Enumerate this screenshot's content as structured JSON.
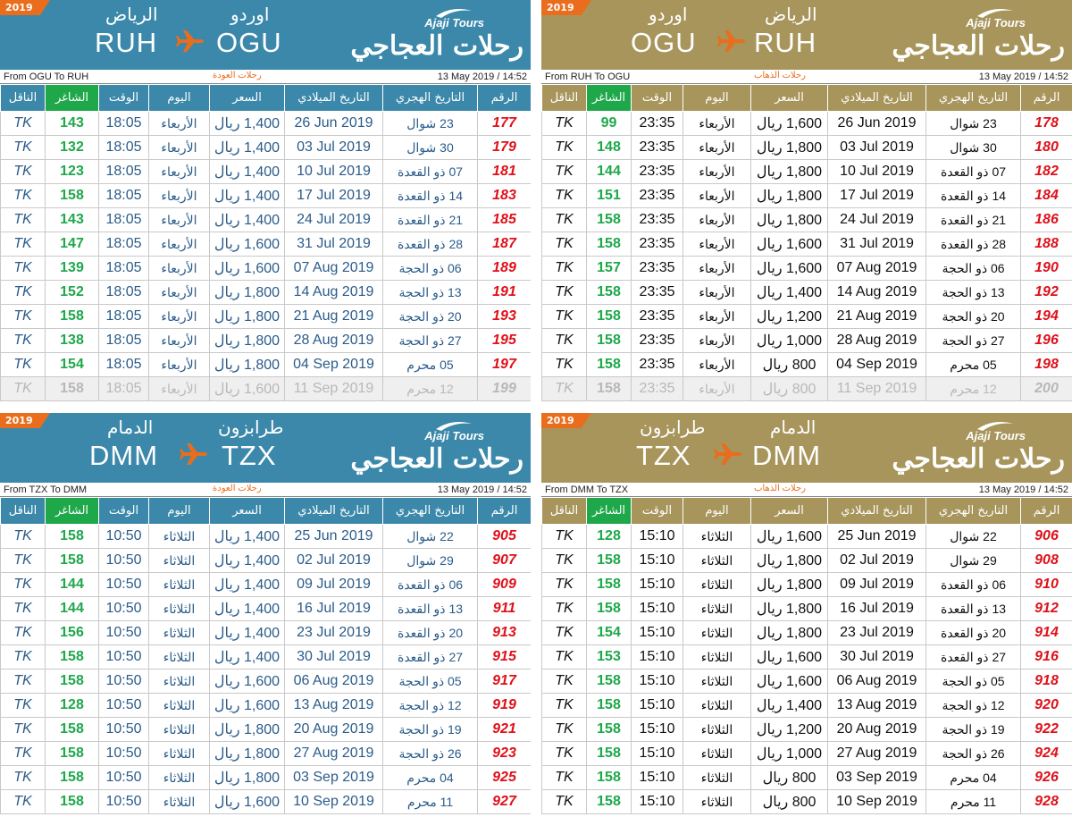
{
  "columns": {
    "carrier": "الناقل",
    "seats": "الشاغر",
    "time": "الوقت",
    "day": "اليوم",
    "price": "السعر",
    "gregorian": "التاريخ الميلادي",
    "hijri": "التاريخ الهجري",
    "number": "الرقم"
  },
  "logo": {
    "brand": "Ajaji Tours",
    "arabic": "رحلات العجاجي"
  },
  "colors": {
    "blue": "#3b88aa",
    "gold": "#a7955c",
    "orange": "#e96d1c",
    "green": "#1ea84a",
    "red": "#e0101a"
  },
  "panels": [
    {
      "year": "2019",
      "from_city": "اوردو",
      "to_city": "الرياض",
      "from_code": "OGU",
      "to_code": "RUH",
      "route": "From OGU To RUH",
      "trip": "رحلات العودة",
      "stamp": "13 May 2019 / 14:52",
      "rows": [
        {
          "carrier": "TK",
          "seats": "143",
          "time": "18:05",
          "day": "الأربعاء",
          "price": "1,400 ريال",
          "gregorian": "26 Jun 2019",
          "hijri": "23 شوال",
          "number": "177"
        },
        {
          "carrier": "TK",
          "seats": "132",
          "time": "18:05",
          "day": "الأربعاء",
          "price": "1,400 ريال",
          "gregorian": "03 Jul 2019",
          "hijri": "30 شوال",
          "number": "179"
        },
        {
          "carrier": "TK",
          "seats": "123",
          "time": "18:05",
          "day": "الأربعاء",
          "price": "1,400 ريال",
          "gregorian": "10 Jul 2019",
          "hijri": "07 ذو القعدة",
          "number": "181"
        },
        {
          "carrier": "TK",
          "seats": "158",
          "time": "18:05",
          "day": "الأربعاء",
          "price": "1,400 ريال",
          "gregorian": "17 Jul 2019",
          "hijri": "14 ذو القعدة",
          "number": "183"
        },
        {
          "carrier": "TK",
          "seats": "143",
          "time": "18:05",
          "day": "الأربعاء",
          "price": "1,400 ريال",
          "gregorian": "24 Jul 2019",
          "hijri": "21 ذو القعدة",
          "number": "185"
        },
        {
          "carrier": "TK",
          "seats": "147",
          "time": "18:05",
          "day": "الأربعاء",
          "price": "1,600 ريال",
          "gregorian": "31 Jul 2019",
          "hijri": "28 ذو القعدة",
          "number": "187"
        },
        {
          "carrier": "TK",
          "seats": "139",
          "time": "18:05",
          "day": "الأربعاء",
          "price": "1,600 ريال",
          "gregorian": "07 Aug 2019",
          "hijri": "06 ذو الحجة",
          "number": "189"
        },
        {
          "carrier": "TK",
          "seats": "152",
          "time": "18:05",
          "day": "الأربعاء",
          "price": "1,800 ريال",
          "gregorian": "14 Aug 2019",
          "hijri": "13 ذو الحجة",
          "number": "191"
        },
        {
          "carrier": "TK",
          "seats": "158",
          "time": "18:05",
          "day": "الأربعاء",
          "price": "1,800 ريال",
          "gregorian": "21 Aug 2019",
          "hijri": "20 ذو الحجة",
          "number": "193"
        },
        {
          "carrier": "TK",
          "seats": "138",
          "time": "18:05",
          "day": "الأربعاء",
          "price": "1,800 ريال",
          "gregorian": "28 Aug 2019",
          "hijri": "27 ذو الحجة",
          "number": "195"
        },
        {
          "carrier": "TK",
          "seats": "154",
          "time": "18:05",
          "day": "الأربعاء",
          "price": "1,800 ريال",
          "gregorian": "04 Sep 2019",
          "hijri": "05 محرم",
          "number": "197"
        },
        {
          "carrier": "TK",
          "seats": "158",
          "time": "18:05",
          "day": "الأربعاء",
          "price": "1,600 ريال",
          "gregorian": "11 Sep 2019",
          "hijri": "12 محرم",
          "number": "199",
          "past": true
        }
      ]
    },
    {
      "year": "2019",
      "from_city": "الرياض",
      "to_city": "اوردو",
      "from_code": "RUH",
      "to_code": "OGU",
      "route": "From RUH To OGU",
      "trip": "رحلات الذهاب",
      "stamp": "13 May 2019 / 14:52",
      "rows": [
        {
          "carrier": "TK",
          "seats": "99",
          "time": "23:35",
          "day": "الأربعاء",
          "price": "1,600 ريال",
          "gregorian": "26 Jun 2019",
          "hijri": "23 شوال",
          "number": "178"
        },
        {
          "carrier": "TK",
          "seats": "148",
          "time": "23:35",
          "day": "الأربعاء",
          "price": "1,800 ريال",
          "gregorian": "03 Jul 2019",
          "hijri": "30 شوال",
          "number": "180"
        },
        {
          "carrier": "TK",
          "seats": "144",
          "time": "23:35",
          "day": "الأربعاء",
          "price": "1,800 ريال",
          "gregorian": "10 Jul 2019",
          "hijri": "07 ذو القعدة",
          "number": "182"
        },
        {
          "carrier": "TK",
          "seats": "151",
          "time": "23:35",
          "day": "الأربعاء",
          "price": "1,800 ريال",
          "gregorian": "17 Jul 2019",
          "hijri": "14 ذو القعدة",
          "number": "184"
        },
        {
          "carrier": "TK",
          "seats": "158",
          "time": "23:35",
          "day": "الأربعاء",
          "price": "1,800 ريال",
          "gregorian": "24 Jul 2019",
          "hijri": "21 ذو القعدة",
          "number": "186"
        },
        {
          "carrier": "TK",
          "seats": "158",
          "time": "23:35",
          "day": "الأربعاء",
          "price": "1,600 ريال",
          "gregorian": "31 Jul 2019",
          "hijri": "28 ذو القعدة",
          "number": "188"
        },
        {
          "carrier": "TK",
          "seats": "157",
          "time": "23:35",
          "day": "الأربعاء",
          "price": "1,600 ريال",
          "gregorian": "07 Aug 2019",
          "hijri": "06 ذو الحجة",
          "number": "190"
        },
        {
          "carrier": "TK",
          "seats": "158",
          "time": "23:35",
          "day": "الأربعاء",
          "price": "1,400 ريال",
          "gregorian": "14 Aug 2019",
          "hijri": "13 ذو الحجة",
          "number": "192"
        },
        {
          "carrier": "TK",
          "seats": "158",
          "time": "23:35",
          "day": "الأربعاء",
          "price": "1,200 ريال",
          "gregorian": "21 Aug 2019",
          "hijri": "20 ذو الحجة",
          "number": "194"
        },
        {
          "carrier": "TK",
          "seats": "158",
          "time": "23:35",
          "day": "الأربعاء",
          "price": "1,000 ريال",
          "gregorian": "28 Aug 2019",
          "hijri": "27 ذو الحجة",
          "number": "196"
        },
        {
          "carrier": "TK",
          "seats": "158",
          "time": "23:35",
          "day": "الأربعاء",
          "price": "800 ريال",
          "gregorian": "04 Sep 2019",
          "hijri": "05 محرم",
          "number": "198"
        },
        {
          "carrier": "TK",
          "seats": "158",
          "time": "23:35",
          "day": "الأربعاء",
          "price": "800 ريال",
          "gregorian": "11 Sep 2019",
          "hijri": "12 محرم",
          "number": "200",
          "past": true
        }
      ]
    },
    {
      "year": "2019",
      "from_city": "طرابزون",
      "to_city": "الدمام",
      "from_code": "TZX",
      "to_code": "DMM",
      "route": "From TZX To DMM",
      "trip": "رحلات العودة",
      "stamp": "13 May 2019 / 14:52",
      "rows": [
        {
          "carrier": "TK",
          "seats": "158",
          "time": "10:50",
          "day": "الثلاثاء",
          "price": "1,400 ريال",
          "gregorian": "25 Jun 2019",
          "hijri": "22 شوال",
          "number": "905"
        },
        {
          "carrier": "TK",
          "seats": "158",
          "time": "10:50",
          "day": "الثلاثاء",
          "price": "1,400 ريال",
          "gregorian": "02 Jul 2019",
          "hijri": "29 شوال",
          "number": "907"
        },
        {
          "carrier": "TK",
          "seats": "144",
          "time": "10:50",
          "day": "الثلاثاء",
          "price": "1,400 ريال",
          "gregorian": "09 Jul 2019",
          "hijri": "06 ذو القعدة",
          "number": "909"
        },
        {
          "carrier": "TK",
          "seats": "144",
          "time": "10:50",
          "day": "الثلاثاء",
          "price": "1,400 ريال",
          "gregorian": "16 Jul 2019",
          "hijri": "13 ذو القعدة",
          "number": "911"
        },
        {
          "carrier": "TK",
          "seats": "156",
          "time": "10:50",
          "day": "الثلاثاء",
          "price": "1,400 ريال",
          "gregorian": "23 Jul 2019",
          "hijri": "20 ذو القعدة",
          "number": "913"
        },
        {
          "carrier": "TK",
          "seats": "158",
          "time": "10:50",
          "day": "الثلاثاء",
          "price": "1,400 ريال",
          "gregorian": "30 Jul 2019",
          "hijri": "27 ذو القعدة",
          "number": "915"
        },
        {
          "carrier": "TK",
          "seats": "158",
          "time": "10:50",
          "day": "الثلاثاء",
          "price": "1,600 ريال",
          "gregorian": "06 Aug 2019",
          "hijri": "05 ذو الحجة",
          "number": "917"
        },
        {
          "carrier": "TK",
          "seats": "128",
          "time": "10:50",
          "day": "الثلاثاء",
          "price": "1,600 ريال",
          "gregorian": "13 Aug 2019",
          "hijri": "12 ذو الحجة",
          "number": "919"
        },
        {
          "carrier": "TK",
          "seats": "158",
          "time": "10:50",
          "day": "الثلاثاء",
          "price": "1,800 ريال",
          "gregorian": "20 Aug 2019",
          "hijri": "19 ذو الحجة",
          "number": "921"
        },
        {
          "carrier": "TK",
          "seats": "158",
          "time": "10:50",
          "day": "الثلاثاء",
          "price": "1,800 ريال",
          "gregorian": "27 Aug 2019",
          "hijri": "26 ذو الحجة",
          "number": "923"
        },
        {
          "carrier": "TK",
          "seats": "158",
          "time": "10:50",
          "day": "الثلاثاء",
          "price": "1,800 ريال",
          "gregorian": "03 Sep 2019",
          "hijri": "04 محرم",
          "number": "925"
        },
        {
          "carrier": "TK",
          "seats": "158",
          "time": "10:50",
          "day": "الثلاثاء",
          "price": "1,600 ريال",
          "gregorian": "10 Sep 2019",
          "hijri": "11 محرم",
          "number": "927"
        }
      ]
    },
    {
      "year": "2019",
      "from_city": "الدمام",
      "to_city": "طرابزون",
      "from_code": "DMM",
      "to_code": "TZX",
      "route": "From DMM To TZX",
      "trip": "رحلات الذهاب",
      "stamp": "13 May 2019 / 14:52",
      "rows": [
        {
          "carrier": "TK",
          "seats": "128",
          "time": "15:10",
          "day": "الثلاثاء",
          "price": "1,600 ريال",
          "gregorian": "25 Jun 2019",
          "hijri": "22 شوال",
          "number": "906"
        },
        {
          "carrier": "TK",
          "seats": "158",
          "time": "15:10",
          "day": "الثلاثاء",
          "price": "1,800 ريال",
          "gregorian": "02 Jul 2019",
          "hijri": "29 شوال",
          "number": "908"
        },
        {
          "carrier": "TK",
          "seats": "158",
          "time": "15:10",
          "day": "الثلاثاء",
          "price": "1,800 ريال",
          "gregorian": "09 Jul 2019",
          "hijri": "06 ذو القعدة",
          "number": "910"
        },
        {
          "carrier": "TK",
          "seats": "158",
          "time": "15:10",
          "day": "الثلاثاء",
          "price": "1,800 ريال",
          "gregorian": "16 Jul 2019",
          "hijri": "13 ذو القعدة",
          "number": "912"
        },
        {
          "carrier": "TK",
          "seats": "154",
          "time": "15:10",
          "day": "الثلاثاء",
          "price": "1,800 ريال",
          "gregorian": "23 Jul 2019",
          "hijri": "20 ذو القعدة",
          "number": "914"
        },
        {
          "carrier": "TK",
          "seats": "153",
          "time": "15:10",
          "day": "الثلاثاء",
          "price": "1,600 ريال",
          "gregorian": "30 Jul 2019",
          "hijri": "27 ذو القعدة",
          "number": "916"
        },
        {
          "carrier": "TK",
          "seats": "158",
          "time": "15:10",
          "day": "الثلاثاء",
          "price": "1,600 ريال",
          "gregorian": "06 Aug 2019",
          "hijri": "05 ذو الحجة",
          "number": "918"
        },
        {
          "carrier": "TK",
          "seats": "158",
          "time": "15:10",
          "day": "الثلاثاء",
          "price": "1,400 ريال",
          "gregorian": "13 Aug 2019",
          "hijri": "12 ذو الحجة",
          "number": "920"
        },
        {
          "carrier": "TK",
          "seats": "158",
          "time": "15:10",
          "day": "الثلاثاء",
          "price": "1,200 ريال",
          "gregorian": "20 Aug 2019",
          "hijri": "19 ذو الحجة",
          "number": "922"
        },
        {
          "carrier": "TK",
          "seats": "158",
          "time": "15:10",
          "day": "الثلاثاء",
          "price": "1,000 ريال",
          "gregorian": "27 Aug 2019",
          "hijri": "26 ذو الحجة",
          "number": "924"
        },
        {
          "carrier": "TK",
          "seats": "158",
          "time": "15:10",
          "day": "الثلاثاء",
          "price": "800 ريال",
          "gregorian": "03 Sep 2019",
          "hijri": "04 محرم",
          "number": "926"
        },
        {
          "carrier": "TK",
          "seats": "158",
          "time": "15:10",
          "day": "الثلاثاء",
          "price": "800 ريال",
          "gregorian": "10 Sep 2019",
          "hijri": "11 محرم",
          "number": "928"
        }
      ]
    }
  ]
}
